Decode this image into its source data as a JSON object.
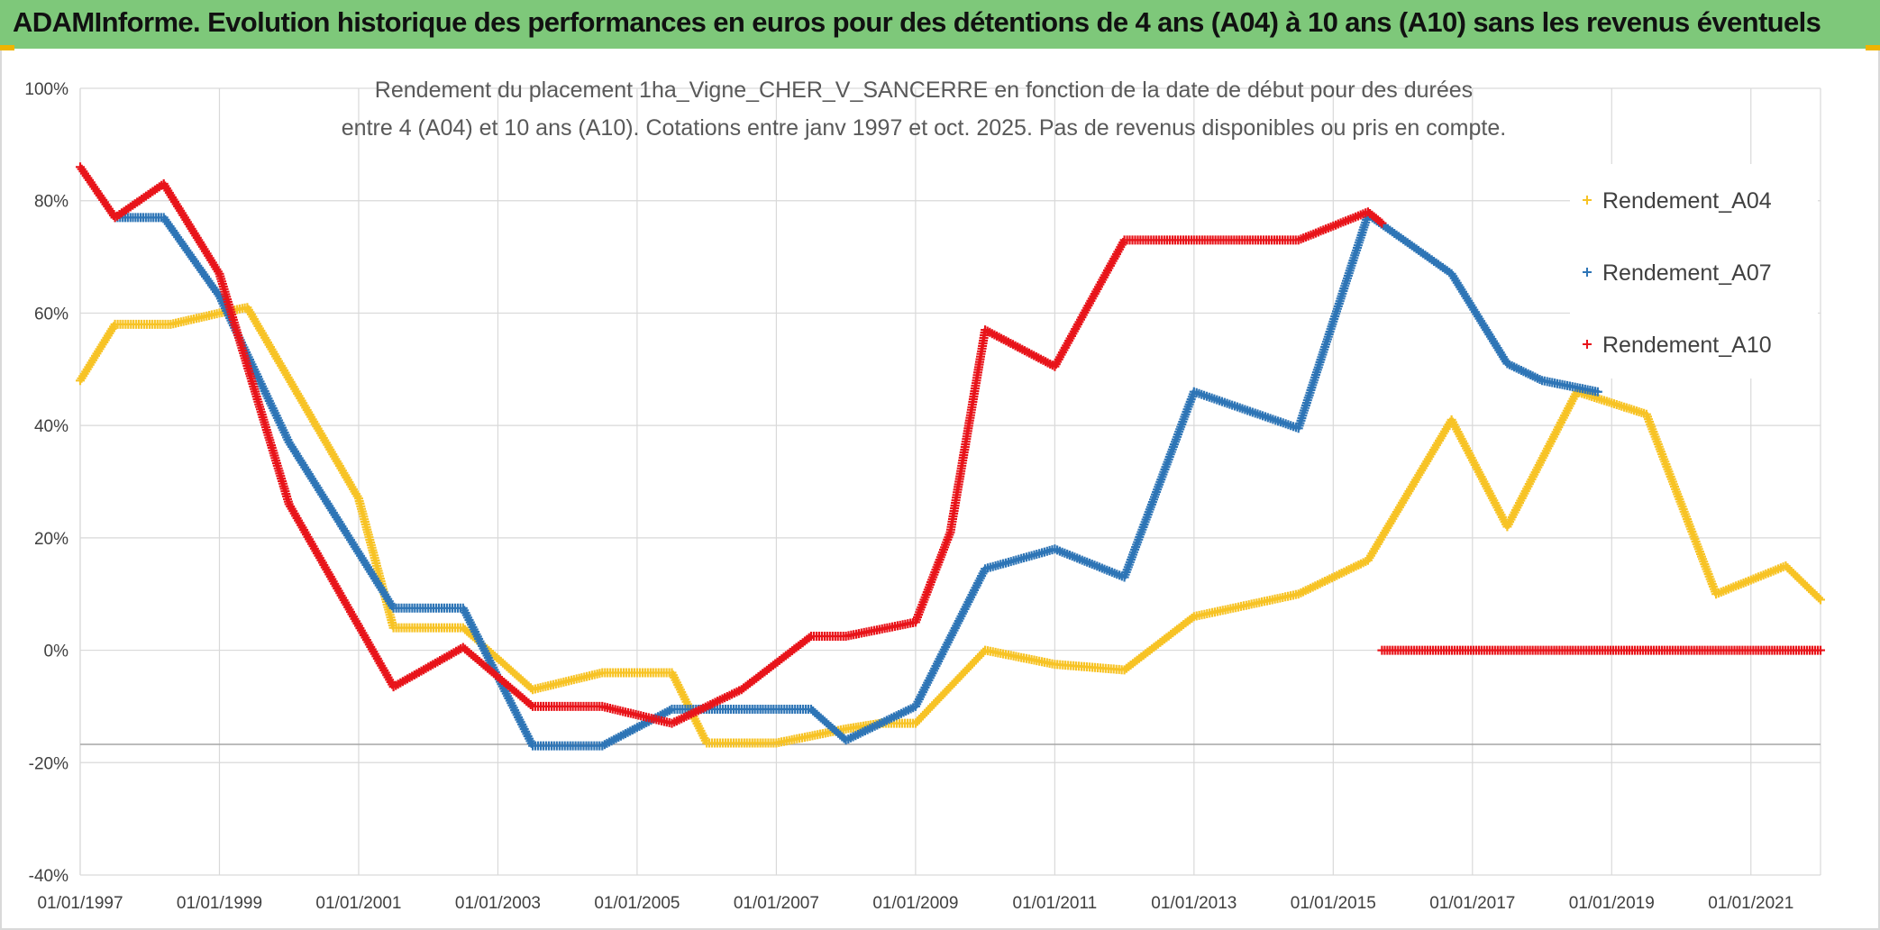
{
  "banner": {
    "text": "ADAMInforme. Evolution historique des performances en euros pour des détentions de 4 ans (A04) à 10 ans (A10) sans les revenus éventuels"
  },
  "chart_data": {
    "type": "scatter",
    "title_lines": [
      "Rendement du placement 1ha_Vigne_CHER_V_SANCERRE en fonction de la date de début pour des durées",
      "entre 4 (A04) et 10 ans (A10). Cotations entre janv 1997 et oct. 2025. Pas de revenus disponibles ou pris en compte."
    ],
    "xlabel": "",
    "ylabel": "",
    "x_range": [
      1997.0,
      2022.0
    ],
    "x_ticks": [
      {
        "value": 1997,
        "label": "01/01/1997"
      },
      {
        "value": 1999,
        "label": "01/01/1999"
      },
      {
        "value": 2001,
        "label": "01/01/2001"
      },
      {
        "value": 2003,
        "label": "01/01/2003"
      },
      {
        "value": 2005,
        "label": "01/01/2005"
      },
      {
        "value": 2007,
        "label": "01/01/2007"
      },
      {
        "value": 2009,
        "label": "01/01/2009"
      },
      {
        "value": 2011,
        "label": "01/01/2011"
      },
      {
        "value": 2013,
        "label": "01/01/2013"
      },
      {
        "value": 2015,
        "label": "01/01/2015"
      },
      {
        "value": 2017,
        "label": "01/01/2017"
      },
      {
        "value": 2019,
        "label": "01/01/2019"
      },
      {
        "value": 2021,
        "label": "01/01/2021"
      }
    ],
    "ylim": [
      -40,
      100
    ],
    "y_ticks": [
      {
        "value": 100,
        "label": "100%"
      },
      {
        "value": 80,
        "label": "80%"
      },
      {
        "value": 60,
        "label": "60%"
      },
      {
        "value": 40,
        "label": "40%"
      },
      {
        "value": 20,
        "label": "20%"
      },
      {
        "value": 0,
        "label": "0%"
      },
      {
        "value": -20,
        "label": "-20%"
      },
      {
        "value": -40,
        "label": "-40%"
      }
    ],
    "grid": true,
    "marker": "+",
    "legend_position": "right",
    "series": [
      {
        "name": "Rendement_A04",
        "color": "#f7c325",
        "points": [
          [
            1997.0,
            48
          ],
          [
            1997.5,
            58
          ],
          [
            1998.3,
            58
          ],
          [
            1999.0,
            60
          ],
          [
            1999.4,
            61
          ],
          [
            2001.0,
            27
          ],
          [
            2001.5,
            4
          ],
          [
            2002.5,
            4
          ],
          [
            2003.5,
            -7
          ],
          [
            2004.5,
            -4
          ],
          [
            2005.5,
            -4
          ],
          [
            2006.0,
            -16.5
          ],
          [
            2007.0,
            -16.5
          ],
          [
            2008.0,
            -14
          ],
          [
            2008.5,
            -13
          ],
          [
            2009.0,
            -13
          ],
          [
            2010.0,
            0
          ],
          [
            2011.0,
            -2.5
          ],
          [
            2012.0,
            -3.5
          ],
          [
            2013.0,
            6
          ],
          [
            2014.5,
            10
          ],
          [
            2015.5,
            16
          ],
          [
            2016.7,
            41
          ],
          [
            2017.5,
            22
          ],
          [
            2018.5,
            46
          ],
          [
            2019.5,
            42
          ],
          [
            2020.5,
            10
          ],
          [
            2021.5,
            15
          ],
          [
            2022.0,
            9
          ]
        ]
      },
      {
        "name": "Rendement_A07",
        "color": "#2e75b6",
        "points": [
          [
            1997.5,
            77
          ],
          [
            1998.2,
            77
          ],
          [
            1999.0,
            63
          ],
          [
            2000.0,
            37
          ],
          [
            2001.5,
            7.5
          ],
          [
            2002.5,
            7.5
          ],
          [
            2003.5,
            -17
          ],
          [
            2004.5,
            -17
          ],
          [
            2005.5,
            -10.5
          ],
          [
            2006.0,
            -10.5
          ],
          [
            2007.5,
            -10.5
          ],
          [
            2008.0,
            -16
          ],
          [
            2009.0,
            -10
          ],
          [
            2010.0,
            14.5
          ],
          [
            2011.0,
            18
          ],
          [
            2012.0,
            13
          ],
          [
            2013.0,
            46
          ],
          [
            2014.5,
            39.5
          ],
          [
            2015.5,
            77.5
          ],
          [
            2016.7,
            67
          ],
          [
            2017.5,
            51
          ],
          [
            2018.0,
            48
          ],
          [
            2018.8,
            46
          ]
        ]
      },
      {
        "name": "Rendement_A10",
        "color": "#e8141a",
        "points": [
          [
            1997.0,
            86
          ],
          [
            1997.5,
            77
          ],
          [
            1998.2,
            83
          ],
          [
            1999.0,
            67
          ],
          [
            2000.0,
            26
          ],
          [
            2001.5,
            -6.5
          ],
          [
            2002.5,
            0.5
          ],
          [
            2003.5,
            -10
          ],
          [
            2004.5,
            -10
          ],
          [
            2005.5,
            -13
          ],
          [
            2006.5,
            -7
          ],
          [
            2007.5,
            2.5
          ],
          [
            2008.0,
            2.5
          ],
          [
            2009.0,
            5
          ],
          [
            2009.5,
            21
          ],
          [
            2010.0,
            57
          ],
          [
            2011.0,
            50.5
          ],
          [
            2012.0,
            73
          ],
          [
            2013.0,
            73
          ],
          [
            2014.5,
            73
          ],
          [
            2015.5,
            78
          ],
          [
            2015.7,
            76
          ],
          null,
          [
            2015.7,
            0
          ],
          [
            2022.0,
            0
          ]
        ]
      }
    ]
  }
}
